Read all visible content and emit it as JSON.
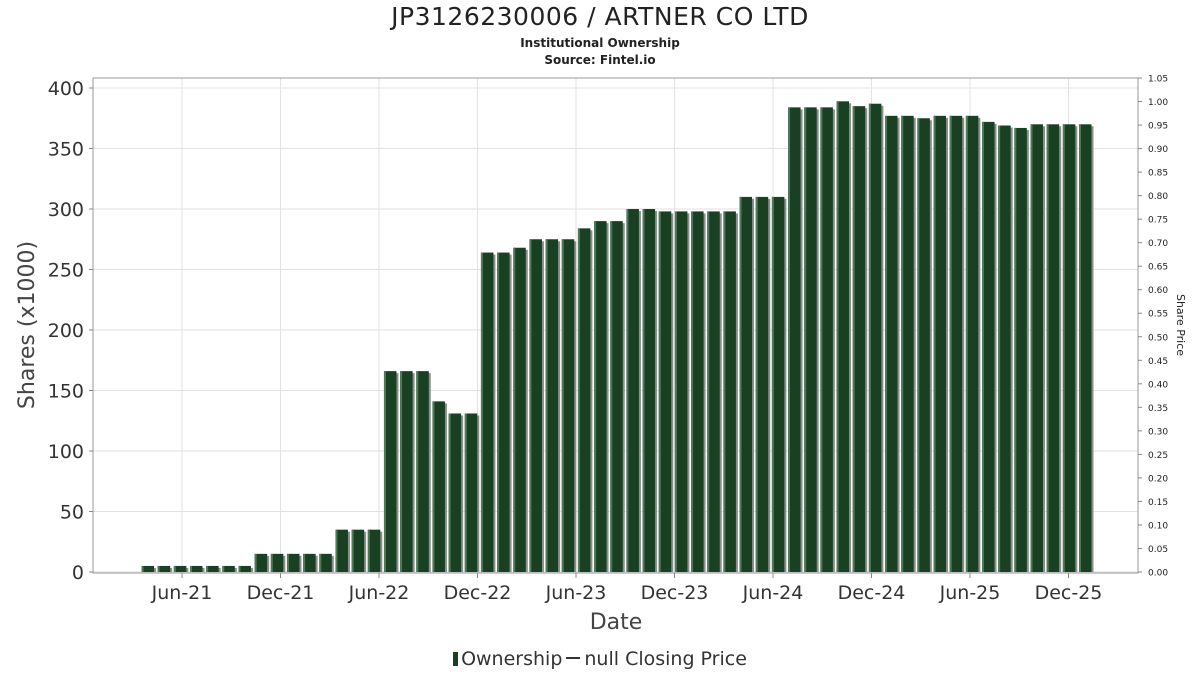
{
  "chart_data": {
    "type": "bar",
    "title": "JP3126230006 / ARTNER CO LTD",
    "subtitle": "Institutional Ownership",
    "source": "Source: Fintel.io",
    "xlabel": "Date",
    "ylabel": "Shares (x1000)",
    "y2label": "Share Price",
    "ylim": [
      0,
      410
    ],
    "y2lim": [
      0,
      1.05
    ],
    "yticks": [
      "0",
      "50",
      "100",
      "150",
      "200",
      "250",
      "300",
      "350",
      "400"
    ],
    "y2ticks": [
      "0.00",
      "0.05",
      "0.10",
      "0.15",
      "0.20",
      "0.25",
      "0.30",
      "0.35",
      "0.40",
      "0.45",
      "0.50",
      "0.55",
      "0.60",
      "0.65",
      "0.70",
      "0.75",
      "0.80",
      "0.85",
      "0.90",
      "0.95",
      "1.00",
      "1.05"
    ],
    "xticks": [
      "Jun-21",
      "Dec-21",
      "Jun-22",
      "Dec-22",
      "Jun-23",
      "Dec-23",
      "Jun-24",
      "Dec-24",
      "Jun-25",
      "Dec-25"
    ],
    "grid": true,
    "legend_position": "bottom",
    "bar_color": "#1a4024",
    "series": [
      {
        "name": "Ownership",
        "values": [
          5,
          5,
          5,
          5,
          5,
          5,
          5,
          15,
          15,
          15,
          15,
          15,
          35,
          35,
          35,
          166,
          166,
          166,
          141,
          131,
          131,
          264,
          264,
          268,
          275,
          275,
          275,
          284,
          290,
          290,
          300,
          300,
          298,
          298,
          298,
          298,
          298,
          310,
          310,
          310,
          384,
          384,
          384,
          389,
          385,
          387,
          377,
          377,
          375,
          377,
          377,
          377,
          372,
          369,
          367,
          370,
          370,
          370,
          370
        ]
      },
      {
        "name": "null Closing Price",
        "values": []
      }
    ]
  },
  "legend": {
    "ownership_label": "Ownership",
    "price_label": "null Closing Price"
  }
}
